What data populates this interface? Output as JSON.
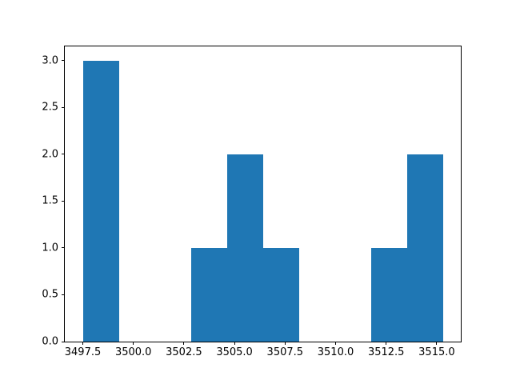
{
  "figure": {
    "title": "",
    "background_color": "#ffffff"
  },
  "chart_data": {
    "type": "bar",
    "subtype": "histogram",
    "title": "",
    "xlabel": "",
    "ylabel": "",
    "grid": false,
    "legend": false,
    "bar_color": "#1f77b4",
    "spine_color": "#000000",
    "tick_color": "#000000",
    "bin_edges": [
      3497.5,
      3499.28,
      3501.06,
      3502.84,
      3504.62,
      3506.4,
      3508.18,
      3509.96,
      3511.74,
      3513.52,
      3515.3
    ],
    "counts": [
      3,
      0,
      0,
      1,
      2,
      1,
      0,
      0,
      1,
      2
    ],
    "xlim": [
      3496.61,
      3516.19
    ],
    "ylim": [
      0,
      3.15
    ],
    "x_ticks": [
      3497.5,
      3500.0,
      3502.5,
      3505.0,
      3507.5,
      3510.0,
      3512.5,
      3515.0
    ],
    "x_tick_labels": [
      "3497.5",
      "3500.0",
      "3502.5",
      "3505.0",
      "3507.5",
      "3510.0",
      "3512.5",
      "3515.0"
    ],
    "y_ticks": [
      0.0,
      0.5,
      1.0,
      1.5,
      2.0,
      2.5,
      3.0
    ],
    "y_tick_labels": [
      "0.0",
      "0.5",
      "1.0",
      "1.5",
      "2.0",
      "2.5",
      "3.0"
    ]
  }
}
